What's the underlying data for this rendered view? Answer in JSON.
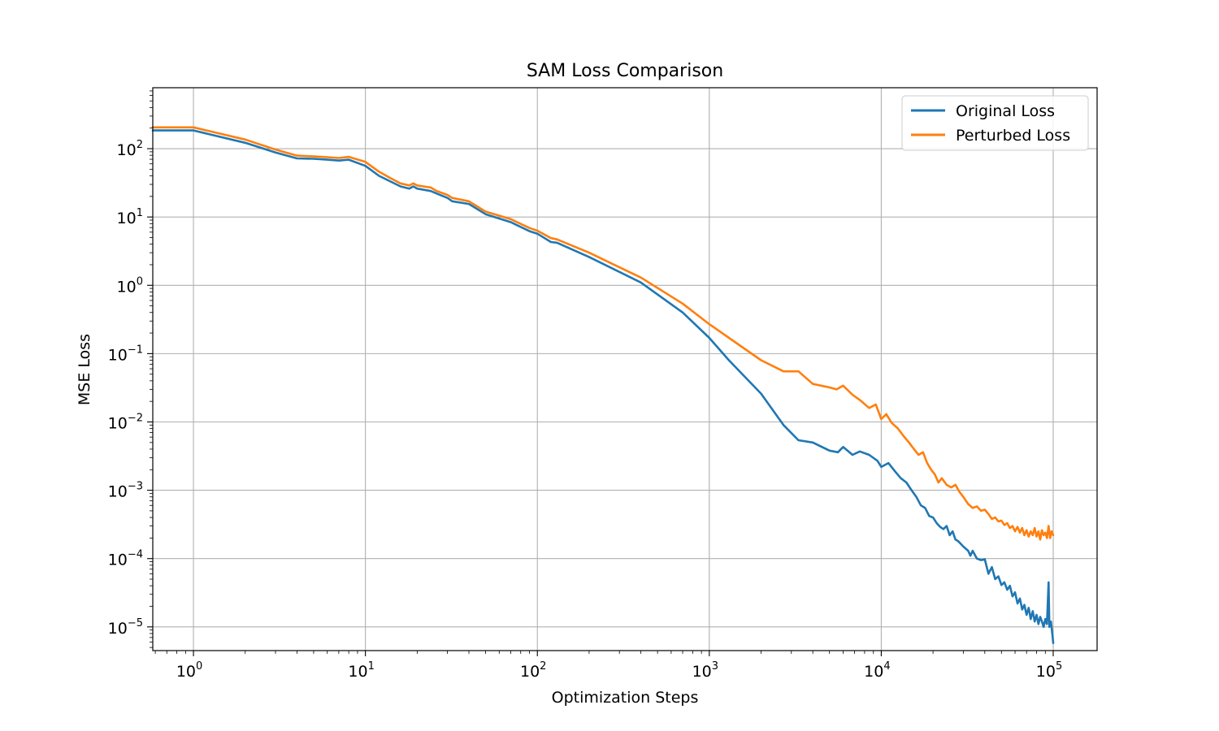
{
  "chart_data": {
    "type": "line",
    "title": "SAM Loss Comparison",
    "xlabel": "Optimization Steps",
    "ylabel": "MSE Loss",
    "xscale": "log",
    "yscale": "log",
    "xlim": [
      0.58,
      180000
    ],
    "ylim": [
      4.5e-06,
      780
    ],
    "grid": true,
    "legend_position": "top-right",
    "x_ticks": [
      {
        "base": "10",
        "exp": "0",
        "value": 1
      },
      {
        "base": "10",
        "exp": "1",
        "value": 10
      },
      {
        "base": "10",
        "exp": "2",
        "value": 100
      },
      {
        "base": "10",
        "exp": "3",
        "value": 1000
      },
      {
        "base": "10",
        "exp": "4",
        "value": 10000
      },
      {
        "base": "10",
        "exp": "5",
        "value": 100000
      }
    ],
    "y_ticks": [
      {
        "base": "10",
        "exp": "2",
        "value": 100
      },
      {
        "base": "10",
        "exp": "1",
        "value": 10
      },
      {
        "base": "10",
        "exp": "0",
        "value": 1
      },
      {
        "base": "10",
        "exp": "−1",
        "value": 0.1
      },
      {
        "base": "10",
        "exp": "−2",
        "value": 0.01
      },
      {
        "base": "10",
        "exp": "−3",
        "value": 0.001
      },
      {
        "base": "10",
        "exp": "−4",
        "value": 0.0001
      },
      {
        "base": "10",
        "exp": "−5",
        "value": 1e-05
      }
    ],
    "series": [
      {
        "name": "Original Loss",
        "color": "#1f77b4",
        "points": [
          [
            0.58,
            185
          ],
          [
            1,
            185
          ],
          [
            2,
            122
          ],
          [
            3,
            88
          ],
          [
            4,
            72
          ],
          [
            5,
            71
          ],
          [
            6,
            69
          ],
          [
            7,
            67
          ],
          [
            8,
            69
          ],
          [
            10,
            56
          ],
          [
            12,
            40
          ],
          [
            14,
            33
          ],
          [
            16,
            28
          ],
          [
            18,
            26
          ],
          [
            19,
            28
          ],
          [
            20,
            26
          ],
          [
            24,
            24
          ],
          [
            26,
            22
          ],
          [
            30,
            19
          ],
          [
            32,
            17
          ],
          [
            40,
            15.5
          ],
          [
            50,
            11
          ],
          [
            70,
            8.4
          ],
          [
            90,
            6.2
          ],
          [
            100,
            5.7
          ],
          [
            120,
            4.3
          ],
          [
            130,
            4.2
          ],
          [
            200,
            2.6
          ],
          [
            400,
            1.1
          ],
          [
            700,
            0.4
          ],
          [
            1000,
            0.17
          ],
          [
            1300,
            0.08
          ],
          [
            2000,
            0.026
          ],
          [
            2700,
            0.009
          ],
          [
            3300,
            0.0054
          ],
          [
            4000,
            0.005
          ],
          [
            5000,
            0.0038
          ],
          [
            5600,
            0.0036
          ],
          [
            6000,
            0.0043
          ],
          [
            6800,
            0.0033
          ],
          [
            7500,
            0.0037
          ],
          [
            8500,
            0.0033
          ],
          [
            9500,
            0.0027
          ],
          [
            10000,
            0.0022
          ],
          [
            11000,
            0.0025
          ],
          [
            12000,
            0.0019
          ],
          [
            13000,
            0.0015
          ],
          [
            14000,
            0.0013
          ],
          [
            15000,
            0.001
          ],
          [
            16000,
            0.0008
          ],
          [
            17000,
            0.0006
          ],
          [
            18000,
            0.00055
          ],
          [
            19000,
            0.00042
          ],
          [
            20000,
            0.0004
          ],
          [
            21000,
            0.00033
          ],
          [
            22000,
            0.00029
          ],
          [
            23000,
            0.00027
          ],
          [
            24000,
            0.0003
          ],
          [
            25000,
            0.00022
          ],
          [
            26000,
            0.00025
          ],
          [
            27000,
            0.00019
          ],
          [
            28000,
            0.00018
          ],
          [
            30000,
            0.00015
          ],
          [
            32000,
            0.00013
          ],
          [
            33000,
            0.00011
          ],
          [
            34000,
            0.00013
          ],
          [
            36000,
            0.0001
          ],
          [
            38000,
            9.5e-05
          ],
          [
            40000,
            9.8e-05
          ],
          [
            42000,
            6e-05
          ],
          [
            44000,
            7.5e-05
          ],
          [
            46000,
            5e-05
          ],
          [
            48000,
            5.5e-05
          ],
          [
            50000,
            4.1e-05
          ],
          [
            52000,
            4.5e-05
          ],
          [
            54000,
            3.5e-05
          ],
          [
            56000,
            4e-05
          ],
          [
            58000,
            2.8e-05
          ],
          [
            60000,
            3.2e-05
          ],
          [
            62000,
            2.2e-05
          ],
          [
            64000,
            2.6e-05
          ],
          [
            66000,
            1.8e-05
          ],
          [
            68000,
            2.1e-05
          ],
          [
            70000,
            1.5e-05
          ],
          [
            72000,
            1.9e-05
          ],
          [
            74000,
            1.3e-05
          ],
          [
            76000,
            1.7e-05
          ],
          [
            78000,
            1.2e-05
          ],
          [
            80000,
            1.5e-05
          ],
          [
            82000,
            1.1e-05
          ],
          [
            84000,
            1.4e-05
          ],
          [
            86000,
            1.2e-05
          ],
          [
            88000,
            1e-05
          ],
          [
            90000,
            1.3e-05
          ],
          [
            92000,
            1.1e-05
          ],
          [
            94000,
            4.5e-05
          ],
          [
            95000,
            1e-05
          ],
          [
            97000,
            1.2e-05
          ],
          [
            99000,
            7.5e-06
          ],
          [
            100000,
            5.8e-06
          ]
        ]
      },
      {
        "name": "Perturbed Loss",
        "color": "#ff7f0e",
        "points": [
          [
            0.58,
            205
          ],
          [
            1,
            205
          ],
          [
            2,
            136
          ],
          [
            3,
            97
          ],
          [
            4,
            79
          ],
          [
            5,
            77
          ],
          [
            6,
            75
          ],
          [
            7,
            73
          ],
          [
            8,
            76
          ],
          [
            10,
            64
          ],
          [
            12,
            46
          ],
          [
            14,
            37
          ],
          [
            16,
            31
          ],
          [
            18,
            29
          ],
          [
            19,
            31
          ],
          [
            20,
            29
          ],
          [
            24,
            27
          ],
          [
            26,
            24
          ],
          [
            30,
            21
          ],
          [
            32,
            19
          ],
          [
            40,
            17
          ],
          [
            50,
            12
          ],
          [
            70,
            9.3
          ],
          [
            90,
            6.9
          ],
          [
            100,
            6.3
          ],
          [
            120,
            4.9
          ],
          [
            130,
            4.7
          ],
          [
            200,
            3
          ],
          [
            400,
            1.3
          ],
          [
            700,
            0.54
          ],
          [
            1000,
            0.27
          ],
          [
            2000,
            0.08
          ],
          [
            2700,
            0.055
          ],
          [
            3300,
            0.055
          ],
          [
            4000,
            0.036
          ],
          [
            5000,
            0.032
          ],
          [
            5500,
            0.03
          ],
          [
            6000,
            0.034
          ],
          [
            6800,
            0.025
          ],
          [
            7500,
            0.021
          ],
          [
            8500,
            0.016
          ],
          [
            9300,
            0.018
          ],
          [
            10000,
            0.011
          ],
          [
            10700,
            0.013
          ],
          [
            11500,
            0.0097
          ],
          [
            12500,
            0.008
          ],
          [
            13500,
            0.0062
          ],
          [
            14500,
            0.005
          ],
          [
            15500,
            0.004
          ],
          [
            16500,
            0.0033
          ],
          [
            17500,
            0.0036
          ],
          [
            18500,
            0.0025
          ],
          [
            19500,
            0.002
          ],
          [
            20500,
            0.0017
          ],
          [
            21500,
            0.0013
          ],
          [
            22500,
            0.0015
          ],
          [
            24000,
            0.0012
          ],
          [
            25500,
            0.0011
          ],
          [
            27000,
            0.0012
          ],
          [
            28500,
            0.00095
          ],
          [
            30000,
            0.0008
          ],
          [
            32000,
            0.00063
          ],
          [
            34000,
            0.00055
          ],
          [
            36000,
            0.00058
          ],
          [
            38000,
            0.0005
          ],
          [
            40000,
            0.00052
          ],
          [
            42000,
            0.00045
          ],
          [
            44000,
            0.00038
          ],
          [
            46000,
            0.0004
          ],
          [
            48000,
            0.00035
          ],
          [
            50000,
            0.00036
          ],
          [
            52000,
            0.00031
          ],
          [
            54000,
            0.00033
          ],
          [
            56000,
            0.00028
          ],
          [
            58000,
            0.0003
          ],
          [
            60000,
            0.00025
          ],
          [
            62000,
            0.00029
          ],
          [
            64000,
            0.00024
          ],
          [
            66000,
            0.00028
          ],
          [
            68000,
            0.00022
          ],
          [
            70000,
            0.00026
          ],
          [
            72000,
            0.00021
          ],
          [
            74000,
            0.00025
          ],
          [
            76000,
            0.00022
          ],
          [
            78000,
            0.00028
          ],
          [
            80000,
            0.00021
          ],
          [
            82000,
            0.00025
          ],
          [
            84000,
            0.00019
          ],
          [
            86000,
            0.00026
          ],
          [
            88000,
            0.00022
          ],
          [
            90000,
            0.00024
          ],
          [
            92000,
            0.0002
          ],
          [
            94000,
            0.0003
          ],
          [
            96000,
            0.0002
          ],
          [
            98000,
            0.00025
          ],
          [
            100000,
            0.00022
          ]
        ]
      }
    ]
  }
}
